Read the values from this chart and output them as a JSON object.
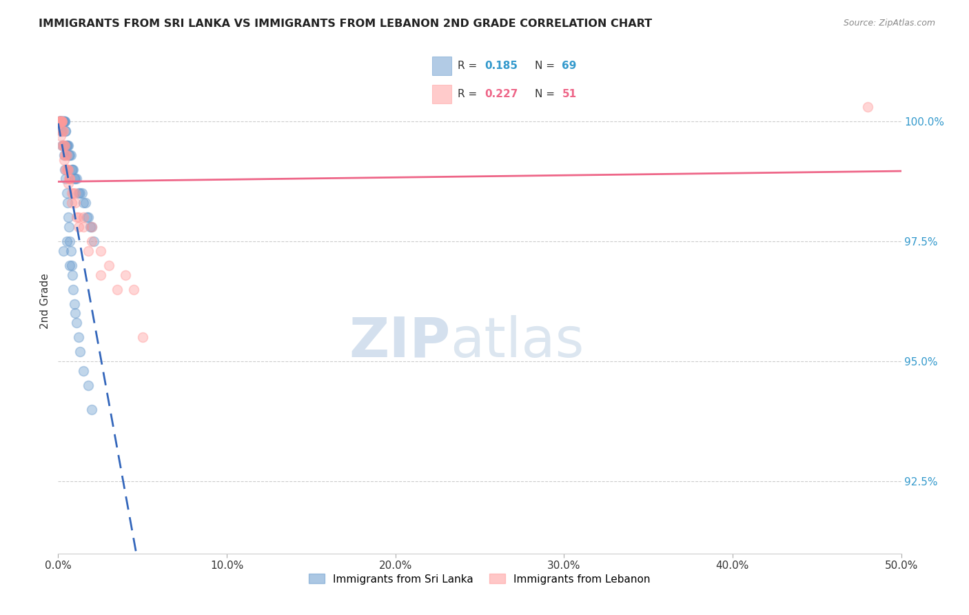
{
  "title": "IMMIGRANTS FROM SRI LANKA VS IMMIGRANTS FROM LEBANON 2ND GRADE CORRELATION CHART",
  "source": "Source: ZipAtlas.com",
  "ylabel": "2nd Grade",
  "x_min": 0.0,
  "x_max": 50.0,
  "y_min": 91.0,
  "y_max": 101.5,
  "y_ticks": [
    92.5,
    95.0,
    97.5,
    100.0
  ],
  "x_ticks": [
    0.0,
    10.0,
    20.0,
    30.0,
    40.0,
    50.0
  ],
  "sri_lanka_color": "#6699CC",
  "lebanon_color": "#FF9999",
  "sri_lanka_R": 0.185,
  "sri_lanka_N": 69,
  "lebanon_R": 0.227,
  "lebanon_N": 51,
  "legend_sri_lanka": "Immigrants from Sri Lanka",
  "legend_lebanon": "Immigrants from Lebanon",
  "sri_lanka_x": [
    0.05,
    0.08,
    0.1,
    0.12,
    0.15,
    0.18,
    0.2,
    0.22,
    0.25,
    0.28,
    0.3,
    0.32,
    0.35,
    0.38,
    0.4,
    0.42,
    0.45,
    0.48,
    0.5,
    0.55,
    0.6,
    0.65,
    0.7,
    0.75,
    0.8,
    0.85,
    0.9,
    0.95,
    1.0,
    1.1,
    1.2,
    1.3,
    1.4,
    1.5,
    1.6,
    1.7,
    1.8,
    1.9,
    2.0,
    2.1,
    0.05,
    0.1,
    0.15,
    0.2,
    0.25,
    0.3,
    0.35,
    0.4,
    0.45,
    0.5,
    0.55,
    0.6,
    0.65,
    0.7,
    0.75,
    0.8,
    0.85,
    0.9,
    0.95,
    1.0,
    1.1,
    1.2,
    1.3,
    1.5,
    1.8,
    2.0,
    0.3,
    0.5,
    0.7
  ],
  "sri_lanka_y": [
    100.0,
    100.0,
    100.0,
    100.0,
    100.0,
    100.0,
    100.0,
    100.0,
    100.0,
    100.0,
    100.0,
    100.0,
    100.0,
    100.0,
    100.0,
    99.8,
    99.8,
    99.5,
    99.5,
    99.5,
    99.5,
    99.3,
    99.3,
    99.3,
    99.0,
    99.0,
    99.0,
    98.8,
    98.8,
    98.8,
    98.5,
    98.5,
    98.5,
    98.3,
    98.3,
    98.0,
    98.0,
    97.8,
    97.8,
    97.5,
    100.0,
    100.0,
    100.0,
    99.8,
    99.5,
    99.5,
    99.3,
    99.0,
    98.8,
    98.5,
    98.3,
    98.0,
    97.8,
    97.5,
    97.3,
    97.0,
    96.8,
    96.5,
    96.2,
    96.0,
    95.8,
    95.5,
    95.2,
    94.8,
    94.5,
    94.0,
    97.3,
    97.5,
    97.0
  ],
  "lebanon_x": [
    0.05,
    0.08,
    0.1,
    0.12,
    0.15,
    0.18,
    0.2,
    0.22,
    0.25,
    0.28,
    0.3,
    0.35,
    0.4,
    0.45,
    0.5,
    0.55,
    0.6,
    0.65,
    0.7,
    0.8,
    0.9,
    1.0,
    1.1,
    1.2,
    1.5,
    2.0,
    2.5,
    3.0,
    4.0,
    4.5,
    0.1,
    0.2,
    0.3,
    0.4,
    0.5,
    0.7,
    1.0,
    1.5,
    2.0,
    3.5,
    5.0,
    0.15,
    0.25,
    0.35,
    0.45,
    0.6,
    0.8,
    1.2,
    1.8,
    2.5,
    48.0
  ],
  "lebanon_y": [
    100.0,
    100.0,
    100.0,
    100.0,
    100.0,
    100.0,
    100.0,
    100.0,
    100.0,
    99.8,
    99.8,
    99.5,
    99.5,
    99.3,
    99.3,
    99.0,
    99.0,
    98.8,
    98.8,
    98.5,
    98.5,
    98.3,
    98.0,
    98.0,
    97.8,
    97.5,
    97.3,
    97.0,
    96.8,
    96.5,
    100.0,
    99.8,
    99.5,
    99.3,
    99.0,
    98.8,
    98.5,
    98.0,
    97.8,
    96.5,
    95.5,
    99.7,
    99.5,
    99.2,
    99.0,
    98.7,
    98.3,
    97.8,
    97.3,
    96.8,
    100.3
  ]
}
